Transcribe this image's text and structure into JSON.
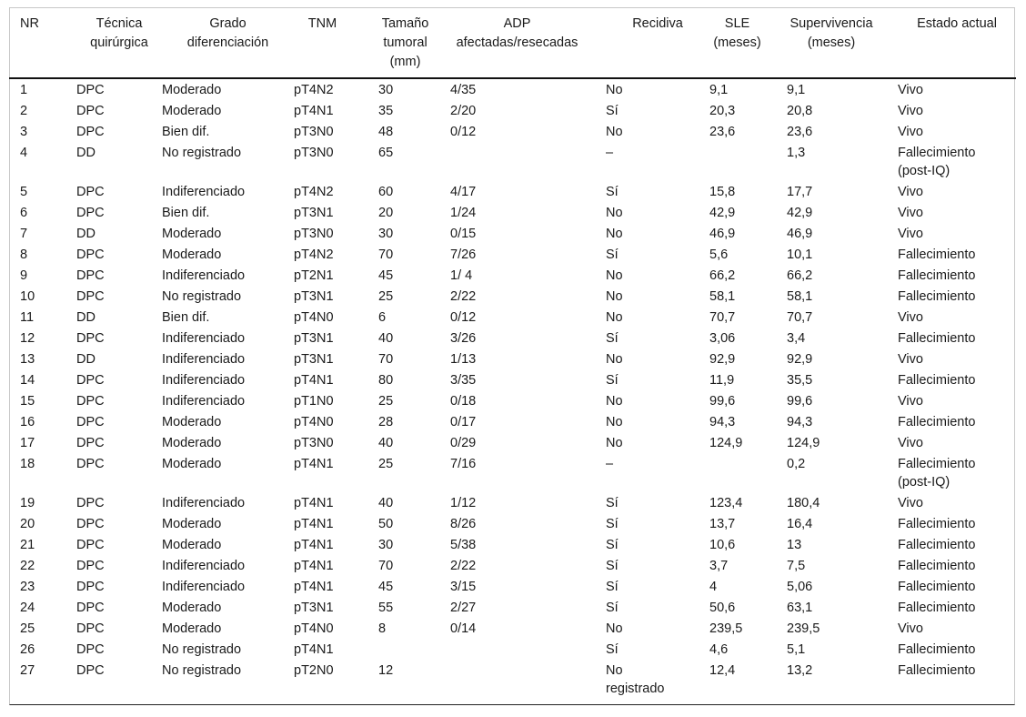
{
  "table": {
    "header": [
      "NR",
      "Técnica\nquirúrgica",
      "Grado\ndiferenciación",
      "TNM",
      "Tamaño\ntumoral\n(mm)",
      "ADP\nafectadas/resecadas",
      "Recidiva",
      "SLE\n(meses)",
      "Supervivencia\n(meses)",
      "Estado actual"
    ],
    "rows": [
      [
        "1",
        "DPC",
        "Moderado",
        "pT4N2",
        "30",
        "4/35",
        "No",
        "9,1",
        "9,1",
        "Vivo"
      ],
      [
        "2",
        "DPC",
        "Moderado",
        "pT4N1",
        "35",
        "2/20",
        "Sí",
        "20,3",
        "20,8",
        "Vivo"
      ],
      [
        "3",
        "DPC",
        "Bien dif.",
        "pT3N0",
        "48",
        "0/12",
        "No",
        "23,6",
        "23,6",
        "Vivo"
      ],
      [
        "4",
        "DD",
        "No registrado",
        "pT3N0",
        "65",
        null,
        "–",
        null,
        "1,3",
        "Fallecimiento\n(post-IQ)"
      ],
      [
        "5",
        "DPC",
        "Indiferenciado",
        "pT4N2",
        "60",
        "4/17",
        "Sí",
        "15,8",
        "17,7",
        "Vivo"
      ],
      [
        "6",
        "DPC",
        "Bien dif.",
        "pT3N1",
        "20",
        "1/24",
        "No",
        "42,9",
        "42,9",
        "Vivo"
      ],
      [
        "7",
        "DD",
        "Moderado",
        "pT3N0",
        "30",
        "0/15",
        "No",
        "46,9",
        "46,9",
        "Vivo"
      ],
      [
        "8",
        "DPC",
        "Moderado",
        "pT4N2",
        "70",
        "7/26",
        "Sí",
        "5,6",
        "10,1",
        "Fallecimiento"
      ],
      [
        "9",
        "DPC",
        "Indiferenciado",
        "pT2N1",
        "45",
        "1/ 4",
        "No",
        "66,2",
        "66,2",
        "Fallecimiento"
      ],
      [
        "10",
        "DPC",
        "No registrado",
        "pT3N1",
        "25",
        "2/22",
        "No",
        "58,1",
        "58,1",
        "Fallecimiento"
      ],
      [
        "11",
        "DD",
        "Bien dif.",
        "pT4N0",
        "6",
        "0/12",
        "No",
        "70,7",
        "70,7",
        "Vivo"
      ],
      [
        "12",
        "DPC",
        "Indiferenciado",
        "pT3N1",
        "40",
        "3/26",
        "Sí",
        "3,06",
        "3,4",
        "Fallecimiento"
      ],
      [
        "13",
        "DD",
        "Indiferenciado",
        "pT3N1",
        "70",
        "1/13",
        "No",
        "92,9",
        "92,9",
        "Vivo"
      ],
      [
        "14",
        "DPC",
        "Indiferenciado",
        "pT4N1",
        "80",
        "3/35",
        "Sí",
        "11,9",
        "35,5",
        "Fallecimiento"
      ],
      [
        "15",
        "DPC",
        "Indiferenciado",
        "pT1N0",
        "25",
        "0/18",
        "No",
        "99,6",
        "99,6",
        "Vivo"
      ],
      [
        "16",
        "DPC",
        "Moderado",
        "pT4N0",
        "28",
        "0/17",
        "No",
        "94,3",
        "94,3",
        "Fallecimiento"
      ],
      [
        "17",
        "DPC",
        "Moderado",
        "pT3N0",
        "40",
        "0/29",
        "No",
        "124,9",
        "124,9",
        "Vivo"
      ],
      [
        "18",
        "DPC",
        "Moderado",
        "pT4N1",
        "25",
        "7/16",
        "–",
        null,
        "0,2",
        "Fallecimiento\n(post-IQ)"
      ],
      [
        "19",
        "DPC",
        "Indiferenciado",
        "pT4N1",
        "40",
        "1/12",
        "Sí",
        "123,4",
        "180,4",
        "Vivo"
      ],
      [
        "20",
        "DPC",
        "Moderado",
        "pT4N1",
        "50",
        "8/26",
        "Sí",
        "13,7",
        "16,4",
        "Fallecimiento"
      ],
      [
        "21",
        "DPC",
        "Moderado",
        "pT4N1",
        "30",
        "5/38",
        "Sí",
        "10,6",
        "13",
        "Fallecimiento"
      ],
      [
        "22",
        "DPC",
        "Indiferenciado",
        "pT4N1",
        "70",
        "2/22",
        "Sí",
        "3,7",
        "7,5",
        "Fallecimiento"
      ],
      [
        "23",
        "DPC",
        "Indiferenciado",
        "pT4N1",
        "45",
        "3/15",
        "Sí",
        "4",
        "5,06",
        "Fallecimiento"
      ],
      [
        "24",
        "DPC",
        "Moderado",
        "pT3N1",
        "55",
        "2/27",
        "Sí",
        "50,6",
        "63,1",
        "Fallecimiento"
      ],
      [
        "25",
        "DPC",
        "Moderado",
        "pT4N0",
        "8",
        "0/14",
        "No",
        "239,5",
        "239,5",
        "Vivo"
      ],
      [
        "26",
        "DPC",
        "No registrado",
        "pT4N1",
        null,
        null,
        "Sí",
        "4,6",
        "5,1",
        "Fallecimiento"
      ],
      [
        "27",
        "DPC",
        "No registrado",
        "pT2N0",
        "12",
        null,
        "No\nregistrado",
        "12,4",
        "13,2",
        "Fallecimiento"
      ]
    ]
  }
}
